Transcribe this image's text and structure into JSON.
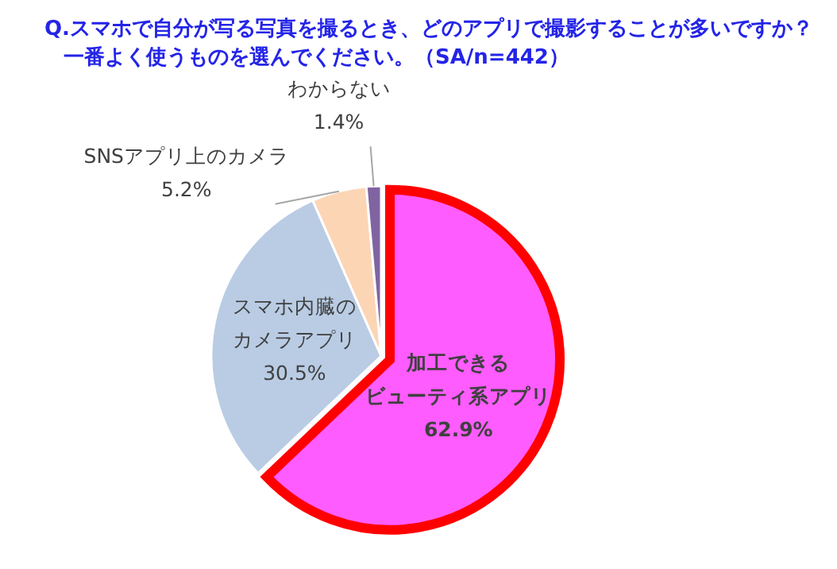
{
  "chart_data": {
    "type": "pie",
    "title": "Q.スマホで自分が写る写真を撮るとき、どのアプリで撮影することが多いですか？",
    "subtitle": "一番よく使うものを選んでください。（SA/n=442）",
    "categories": [
      "加工できるビューティ系アプリ",
      "スマホ内臓のカメラアプリ",
      "SNSアプリ上のカメラ",
      "わからない"
    ],
    "values": [
      62.9,
      30.5,
      5.2,
      1.4
    ],
    "value_labels": [
      "62.9%",
      "30.5%",
      "5.2%",
      "1.4%"
    ],
    "colors": [
      "#ff5cff",
      "#b9cce4",
      "#fcd5b5",
      "#8064a2"
    ]
  }
}
